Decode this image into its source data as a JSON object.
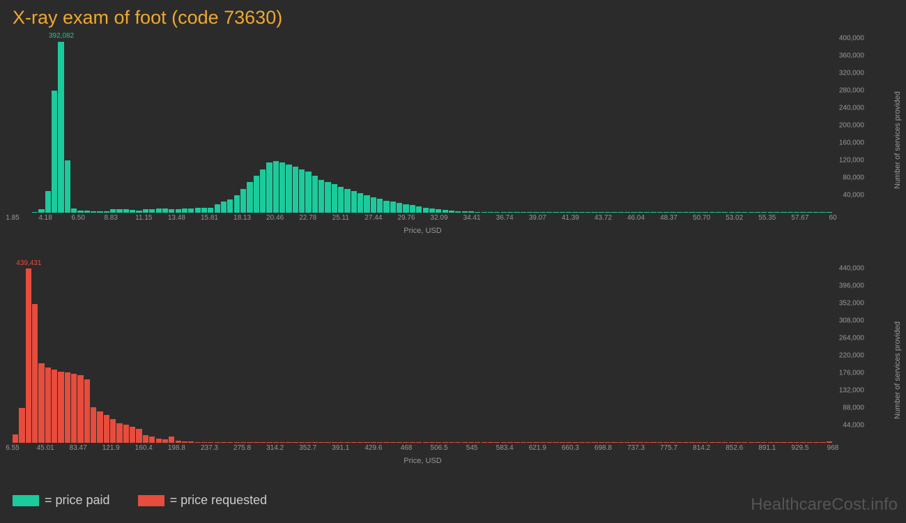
{
  "title": "X-ray exam of foot (code 73630)",
  "title_color": "#f0a830",
  "background_color": "#2b2b2b",
  "watermark": "HealthcareCost.info",
  "watermark_color": "#555555",
  "axis_text_color": "#999999",
  "chart_top": {
    "type": "histogram",
    "bar_color": "#1bcb9b",
    "peak_label": "392,082",
    "peak_label_color": "#1bcb9b",
    "peak_index": 7,
    "xlabel": "Price, USD",
    "ylabel": "Number of services provided",
    "xticks": [
      "1.85",
      "4.18",
      "6.50",
      "8.83",
      "11.15",
      "13.48",
      "15.81",
      "18.13",
      "20.46",
      "22.78",
      "25.11",
      "27.44",
      "29.76",
      "32.09",
      "34.41",
      "36.74",
      "39.07",
      "41.39",
      "43.72",
      "46.04",
      "48.37",
      "50.70",
      "53.02",
      "55.35",
      "57.67",
      "60"
    ],
    "yticks": [
      "40,000",
      "80,000",
      "120,000",
      "160,000",
      "200,000",
      "240,000",
      "280,000",
      "320,000",
      "360,000",
      "400,000"
    ],
    "ymax": 400000,
    "values": [
      0,
      0,
      0,
      2000,
      8000,
      50000,
      280000,
      392082,
      120000,
      10000,
      5000,
      5000,
      4000,
      4000,
      4000,
      8000,
      8000,
      8000,
      6000,
      5000,
      8000,
      8000,
      10000,
      10000,
      8000,
      8000,
      10000,
      10000,
      12000,
      12000,
      12000,
      20000,
      25000,
      30000,
      40000,
      55000,
      70000,
      85000,
      100000,
      115000,
      118000,
      115000,
      110000,
      105000,
      100000,
      95000,
      85000,
      75000,
      70000,
      65000,
      60000,
      55000,
      50000,
      45000,
      40000,
      35000,
      32000,
      28000,
      25000,
      22000,
      20000,
      18000,
      15000,
      12000,
      10000,
      8000,
      6000,
      5000,
      4000,
      4000,
      3000,
      2000,
      2000,
      2000,
      2000,
      1000,
      1000,
      1000,
      1000,
      1000,
      1000,
      1000,
      1000,
      1000,
      1000,
      1000,
      1000,
      1000,
      1000,
      1000,
      1000,
      1000,
      1000,
      1000,
      1000,
      1000,
      1000,
      1000,
      1000,
      1000,
      1000,
      1000,
      1000,
      1000,
      1000,
      1000,
      1000,
      1000,
      1000,
      1000,
      1000,
      1000,
      1000,
      1000,
      1000,
      1000,
      1000,
      1000,
      1000,
      1000,
      1000,
      1000,
      1000,
      2000,
      2000,
      2000
    ]
  },
  "chart_bottom": {
    "type": "histogram",
    "bar_color": "#e74c3c",
    "peak_label": "439,431",
    "peak_label_color": "#e74c3c",
    "peak_index": 2,
    "xlabel": "Price, USD",
    "ylabel": "Number of services provided",
    "xticks": [
      "6.55",
      "45.01",
      "83.47",
      "121.9",
      "160.4",
      "198.8",
      "237.3",
      "275.8",
      "314.2",
      "352.7",
      "391.1",
      "429.6",
      "468",
      "506.5",
      "545",
      "583.4",
      "621.9",
      "660.3",
      "698.8",
      "737.3",
      "775.7",
      "814.2",
      "852.6",
      "891.1",
      "929.5",
      "968"
    ],
    "yticks": [
      "44,000",
      "88,000",
      "132,000",
      "176,000",
      "220,000",
      "264,000",
      "308,000",
      "352,000",
      "396,000",
      "440,000"
    ],
    "ymax": 440000,
    "values": [
      22000,
      88000,
      439431,
      350000,
      200000,
      190000,
      185000,
      180000,
      178000,
      175000,
      170000,
      160000,
      90000,
      80000,
      70000,
      60000,
      50000,
      45000,
      40000,
      35000,
      20000,
      15000,
      10000,
      8000,
      15000,
      5000,
      4000,
      3000,
      2000,
      2000,
      1000,
      1000,
      1000,
      1000,
      1000,
      1000,
      1000,
      1000,
      1000,
      1000,
      1000,
      1000,
      1000,
      1000,
      1000,
      1000,
      1000,
      1000,
      1000,
      1000,
      1000,
      1000,
      1000,
      1000,
      1000,
      1000,
      1000,
      1000,
      1000,
      1000,
      1000,
      1000,
      1000,
      1000,
      1000,
      1000,
      1000,
      1000,
      1000,
      1000,
      1000,
      1000,
      1000,
      1000,
      1000,
      1000,
      1000,
      1000,
      1000,
      1000,
      1000,
      1000,
      1000,
      1000,
      1000,
      1000,
      1000,
      1000,
      1000,
      1000,
      1000,
      1000,
      1000,
      1000,
      1000,
      1000,
      1000,
      1000,
      1000,
      1000,
      1000,
      1000,
      1000,
      1000,
      1000,
      1000,
      1000,
      1000,
      1000,
      1000,
      1000,
      1000,
      1000,
      1000,
      1000,
      1000,
      1000,
      1000,
      1000,
      1000,
      1000,
      1000,
      1000,
      1000,
      1000,
      3000
    ]
  },
  "legend": [
    {
      "color": "#1bcb9b",
      "label": "= price paid"
    },
    {
      "color": "#e74c3c",
      "label": "= price requested"
    }
  ]
}
